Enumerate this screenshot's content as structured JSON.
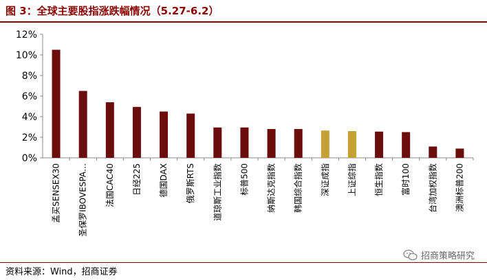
{
  "figure": {
    "title": "图 3：全球主要股指涨跌幅情况（5.27-6.2）",
    "source": "资料来源：Wind，招商证券",
    "watermark": "招商策略研究",
    "watermark_icon": "wechat-icon"
  },
  "colors": {
    "title": "#8b0000",
    "bar_primary": "#6b0d0d",
    "bar_highlight": "#c4a035",
    "axis": "#888888"
  },
  "chart_data": {
    "type": "bar",
    "title": "",
    "xlabel": "",
    "ylabel": "",
    "ylim": [
      0,
      12
    ],
    "yticks": [
      "0%",
      "2%",
      "4%",
      "6%",
      "8%",
      "10%",
      "12%"
    ],
    "ytick_values": [
      0,
      2,
      4,
      6,
      8,
      10,
      12
    ],
    "grid": false,
    "categories": [
      "孟买SENSEX30",
      "圣保罗IBOVESPA…",
      "法国CAC40",
      "日经225",
      "德国DAX",
      "俄罗斯RTS",
      "道琼斯工业指数",
      "标普500",
      "纳斯达克指数",
      "韩国综合指数",
      "深证成指",
      "上证综指",
      "恒生指数",
      "富时100",
      "台湾加权指数",
      "澳洲标普200"
    ],
    "values": [
      10.5,
      6.5,
      5.4,
      4.95,
      4.5,
      4.3,
      2.95,
      2.95,
      2.8,
      2.8,
      2.65,
      2.6,
      2.55,
      2.5,
      1.1,
      0.9
    ],
    "highlight": [
      false,
      false,
      false,
      false,
      false,
      false,
      false,
      false,
      false,
      false,
      true,
      true,
      false,
      false,
      false,
      false
    ]
  }
}
